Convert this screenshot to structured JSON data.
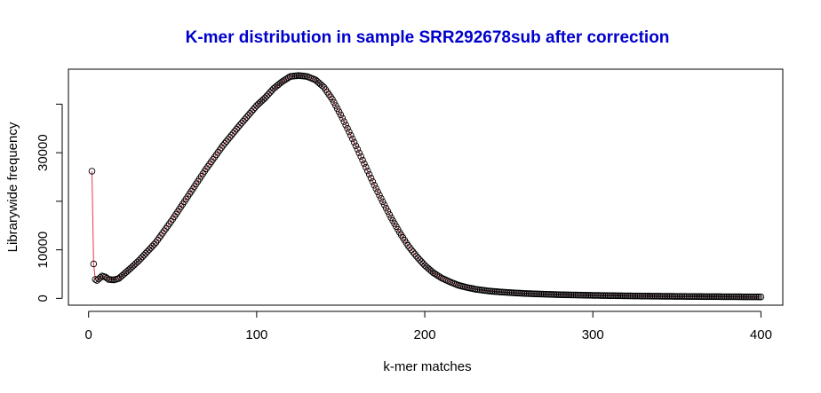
{
  "chart_data": {
    "type": "line",
    "title": "K-mer distribution in sample SRR292678sub after correction",
    "title_color": "#0000cc",
    "line_color": "#e8384f",
    "point_color": "#000000",
    "xlabel": "k-mer matches",
    "ylabel": "Librarywide frequency",
    "xlim": [
      -12,
      413
    ],
    "ylim": [
      -1400,
      47200
    ],
    "x_ticks": [
      0,
      100,
      200,
      300,
      400
    ],
    "y_ticks": [
      0,
      10000,
      30000
    ],
    "y_tick_labels": [
      "0",
      "10000",
      "30000"
    ],
    "series": [
      {
        "x_start": 2,
        "x_end": 400,
        "x_step": 1,
        "anchor_x": [
          2,
          3,
          4,
          5,
          6,
          8,
          10,
          12,
          15,
          18,
          20,
          25,
          30,
          40,
          50,
          60,
          70,
          80,
          90,
          100,
          105,
          110,
          115,
          120,
          125,
          130,
          135,
          140,
          145,
          150,
          155,
          160,
          165,
          170,
          175,
          180,
          185,
          190,
          195,
          200,
          205,
          210,
          215,
          220,
          225,
          230,
          235,
          240,
          250,
          260,
          270,
          280,
          300,
          320,
          340,
          360,
          380,
          400
        ],
        "anchor_y": [
          26200,
          7100,
          3900,
          3700,
          4000,
          4600,
          4400,
          3900,
          3800,
          4100,
          4700,
          6200,
          7800,
          11500,
          16300,
          21500,
          26700,
          31500,
          35700,
          39700,
          41300,
          43200,
          44600,
          45700,
          45900,
          45700,
          45000,
          43500,
          41000,
          37800,
          34300,
          30700,
          27000,
          23300,
          19900,
          16600,
          13600,
          10900,
          8700,
          6800,
          5300,
          4200,
          3400,
          2700,
          2250,
          1900,
          1650,
          1450,
          1200,
          1000,
          880,
          760,
          620,
          520,
          440,
          380,
          340,
          300
        ]
      }
    ]
  }
}
